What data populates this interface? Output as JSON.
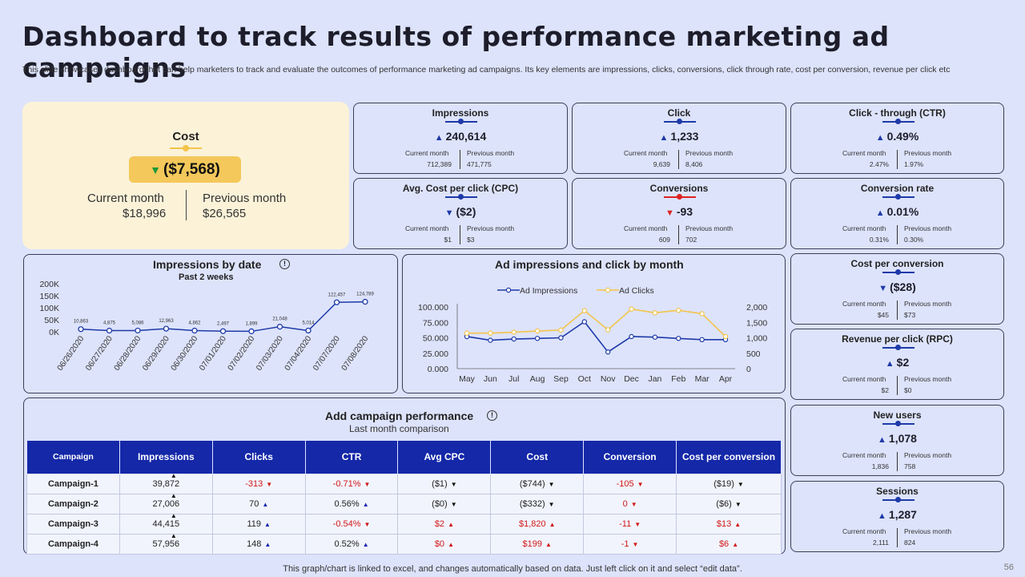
{
  "title": "Dashboard to track results of performance marketing ad campaigns",
  "subtitle": "This slide showcases dashboard that can help marketers to track and evaluate the outcomes of performance marketing ad campaigns. Its key elements are impressions, clicks, conversions, click through rate, cost per conversion, revenue per click etc",
  "cost": {
    "title": "Cost",
    "value": "($7,568)",
    "current_label": "Current month",
    "current_value": "$18,996",
    "previous_label": "Previous month",
    "previous_value": "$26,565"
  },
  "kpis": [
    {
      "title": "Impressions",
      "value": "240,614",
      "trend": "up",
      "current": "712,389",
      "previous": "471,775"
    },
    {
      "title": "Click",
      "value": "1,233",
      "trend": "up",
      "current": "9,639",
      "previous": "8,406"
    },
    {
      "title": "Click - through (CTR)",
      "value": "0.49%",
      "trend": "up",
      "current": "2.47%",
      "previous": "1.97%"
    },
    {
      "title": "Avg. Cost per click (CPC)",
      "value": "($2)",
      "trend": "down",
      "current": "$1",
      "previous": "$3"
    },
    {
      "title": "Conversions",
      "value": "-93",
      "trend": "down-red",
      "current": "609",
      "previous": "702"
    },
    {
      "title": "Conversion rate",
      "value": "0.01%",
      "trend": "up",
      "current": "0.31%",
      "previous": "0.30%"
    },
    {
      "title": "Cost per conversion",
      "value": "($28)",
      "trend": "down",
      "current": "$45",
      "previous": "$73"
    },
    {
      "title": "Revenue per click (RPC)",
      "value": "$2",
      "trend": "up",
      "current": "$2",
      "previous": "$0"
    },
    {
      "title": "New users",
      "value": "1,078",
      "trend": "up",
      "current": "1,836",
      "previous": "758"
    },
    {
      "title": "Sessions",
      "value": "1,287",
      "trend": "up",
      "current": "2,111",
      "previous": "824"
    }
  ],
  "kpi_labels": {
    "current": "Current month",
    "previous": "Previous month"
  },
  "impressions_chart": {
    "title": "Impressions by date",
    "subtitle": "Past 2 weeks",
    "info": "!"
  },
  "ad_chart": {
    "title": "Ad impressions and click by month"
  },
  "chart_data": [
    {
      "type": "line",
      "title": "Impressions by date",
      "subtitle": "Past 2 weeks",
      "categories": [
        "06/26/2020",
        "06/27/2020",
        "06/28/2020",
        "06/29/2020",
        "06/30/2020",
        "07/01/2020",
        "07/02/2020",
        "07/03/2020",
        "07/04/2020",
        "07/07/2020",
        "07/08/2020"
      ],
      "values": [
        10863,
        4875,
        5086,
        12963,
        4862,
        2497,
        1899,
        21048,
        5014,
        122457,
        124789
      ],
      "value_labels": [
        "10,863",
        "4,875",
        "5,086",
        "12,963",
        "4,862",
        "2,497",
        "1,899",
        "21,048",
        "5,014",
        "122,457",
        "124,789"
      ],
      "yticks": [
        "0K",
        "50K",
        "100K",
        "150K",
        "200K"
      ],
      "ylim": [
        0,
        200000
      ]
    },
    {
      "type": "line",
      "title": "Ad impressions and click by month",
      "categories": [
        "May",
        "Jun",
        "Jul",
        "Aug",
        "Sep",
        "Oct",
        "Nov",
        "Dec",
        "Jan",
        "Feb",
        "Mar",
        "Apr"
      ],
      "series": [
        {
          "name": "Ad Impressions",
          "axis": "left",
          "color": "#1e3aa8",
          "values": [
            52000,
            46000,
            48000,
            49000,
            50000,
            76000,
            27000,
            52000,
            51000,
            49000,
            47000,
            47000
          ]
        },
        {
          "name": "Ad Clicks",
          "axis": "right",
          "color": "#f3c44a",
          "values": [
            1150,
            1150,
            1180,
            1220,
            1250,
            1880,
            1260,
            1930,
            1810,
            1890,
            1780,
            1040
          ]
        }
      ],
      "yticks_left": [
        "0.000",
        "25.000",
        "50.000",
        "75.000",
        "100.000"
      ],
      "ylim_left": [
        0,
        100000
      ],
      "yticks_right": [
        "0",
        "500",
        "1,000",
        "1,500",
        "2,000"
      ],
      "ylim_right": [
        0,
        2000
      ],
      "legend": "top"
    }
  ],
  "performance": {
    "title": "Add campaign performance",
    "subtitle": "Last month comparison",
    "headers": [
      "Campaign",
      "Impressions",
      "Clicks",
      "CTR",
      "Avg CPC",
      "Cost",
      "Conversion",
      "Cost per conversion"
    ],
    "rows": [
      {
        "campaign": "Campaign-1",
        "impressions": "39,872",
        "clicks": "-313",
        "ctr": "-0.71%",
        "cpc": "($1)",
        "cost": "($744)",
        "conversion": "-105",
        "cpc_conv": "($19)"
      },
      {
        "campaign": "Campaign-2",
        "impressions": "27,006",
        "clicks": "70",
        "ctr": "0.56%",
        "cpc": "($0)",
        "cost": "($332)",
        "conversion": "0",
        "cpc_conv": "($6)"
      },
      {
        "campaign": "Campaign-3",
        "impressions": "44,415",
        "clicks": "119",
        "ctr": "-0.54%",
        "cpc": "$2",
        "cost": "$1,820",
        "conversion": "-11",
        "cpc_conv": "$13"
      },
      {
        "campaign": "Campaign-4",
        "impressions": "57,956",
        "clicks": "148",
        "ctr": "0.52%",
        "cpc": "$0",
        "cost": "$199",
        "conversion": "-1",
        "cpc_conv": "$6"
      }
    ]
  },
  "footer": "This graph/chart is linked to excel, and changes automatically based on data. Just left click on it and select “edit data”.",
  "page_number": "56"
}
